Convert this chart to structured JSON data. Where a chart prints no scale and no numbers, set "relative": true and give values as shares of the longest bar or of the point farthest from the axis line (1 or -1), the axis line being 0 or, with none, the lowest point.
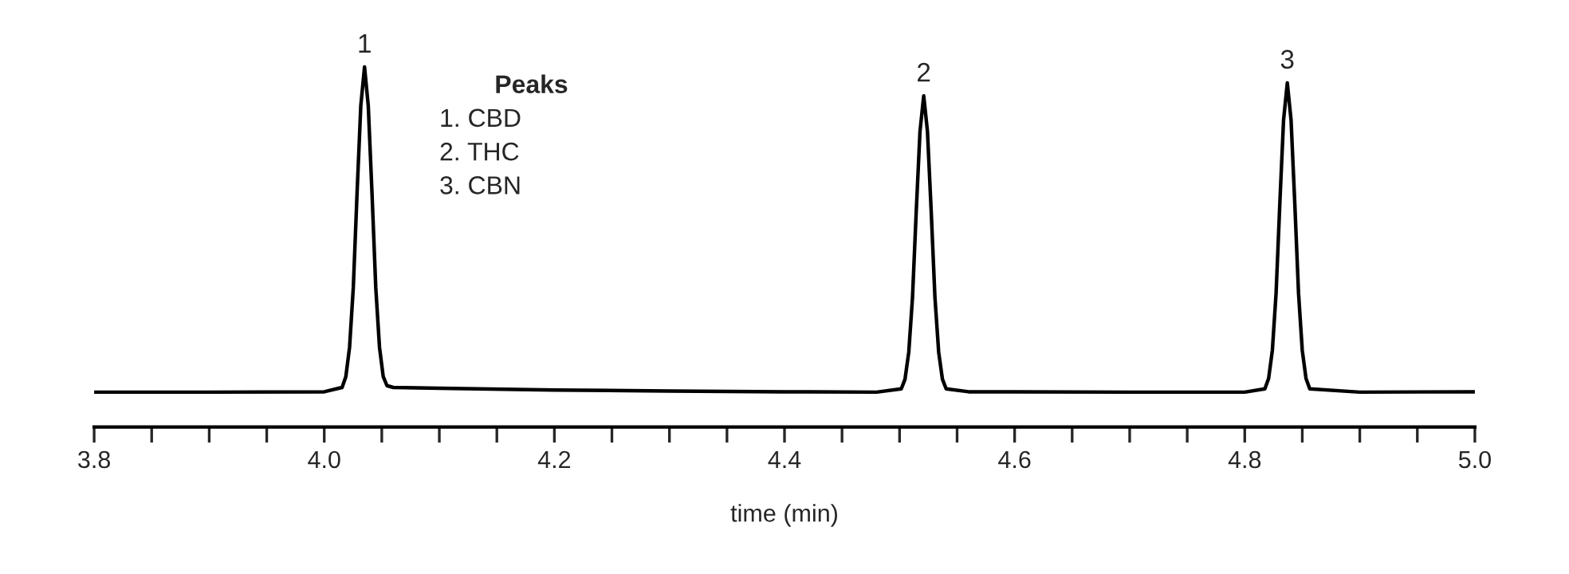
{
  "chart_data": {
    "type": "line",
    "relative": true,
    "xlabel": "time (min)",
    "x": [
      3.8,
      3.9,
      4.0,
      4.0155,
      4.01875,
      4.022,
      4.02525,
      4.0285,
      4.03175,
      4.035,
      4.03825,
      4.0415,
      4.04475,
      4.048,
      4.05125,
      4.0545,
      4.06,
      4.1,
      4.2,
      4.3,
      4.4,
      4.48,
      4.5015,
      4.50475,
      4.508,
      4.51125,
      4.5145,
      4.51775,
      4.521,
      4.52425,
      4.5275,
      4.53075,
      4.534,
      4.53725,
      4.5405,
      4.56,
      4.7,
      4.8,
      4.8175,
      4.82075,
      4.824,
      4.82725,
      4.8305,
      4.83375,
      4.837,
      4.84025,
      4.8435,
      4.84675,
      4.85,
      4.85325,
      4.8565,
      4.9,
      5.0
    ],
    "series": [
      {
        "color": "#000000",
        "values": [
          0.097,
          0.097,
          0.098,
          0.11,
          0.14,
          0.222,
          0.388,
          0.649,
          0.892,
          1.0,
          0.892,
          0.649,
          0.388,
          0.222,
          0.14,
          0.115,
          0.11,
          0.108,
          0.103,
          0.1,
          0.098,
          0.097,
          0.106,
          0.133,
          0.208,
          0.36,
          0.599,
          0.821,
          0.92,
          0.821,
          0.599,
          0.36,
          0.208,
          0.133,
          0.106,
          0.098,
          0.097,
          0.097,
          0.106,
          0.135,
          0.213,
          0.372,
          0.621,
          0.853,
          0.956,
          0.853,
          0.621,
          0.372,
          0.213,
          0.135,
          0.106,
          0.097,
          0.098
        ]
      }
    ],
    "xlim": [
      3.8,
      5.0
    ],
    "xticks": [
      {
        "value": 3.8,
        "label": "3.8"
      },
      {
        "value": 3.85,
        "label": null
      },
      {
        "value": 3.9,
        "label": null
      },
      {
        "value": 3.95,
        "label": null
      },
      {
        "value": 4.0,
        "label": "4.0"
      },
      {
        "value": 4.05,
        "label": null
      },
      {
        "value": 4.1,
        "label": null
      },
      {
        "value": 4.15,
        "label": null
      },
      {
        "value": 4.2,
        "label": "4.2"
      },
      {
        "value": 4.25,
        "label": null
      },
      {
        "value": 4.3,
        "label": null
      },
      {
        "value": 4.35,
        "label": null
      },
      {
        "value": 4.4,
        "label": "4.4"
      },
      {
        "value": 4.45,
        "label": null
      },
      {
        "value": 4.5,
        "label": null
      },
      {
        "value": 4.55,
        "label": null
      },
      {
        "value": 4.6,
        "label": "4.6"
      },
      {
        "value": 4.65,
        "label": null
      },
      {
        "value": 4.7,
        "label": null
      },
      {
        "value": 4.75,
        "label": null
      },
      {
        "value": 4.8,
        "label": "4.8"
      },
      {
        "value": 4.85,
        "label": null
      },
      {
        "value": 4.9,
        "label": null
      },
      {
        "value": 4.95,
        "label": null
      },
      {
        "value": 5.0,
        "label": "5.0"
      }
    ],
    "tick_labels": "x",
    "grid": false,
    "legend": false,
    "marker": "none",
    "line_style": "solid",
    "annotations": [
      {
        "text": "1",
        "x": 4.035,
        "y": 1.0
      },
      {
        "text": "2",
        "x": 4.521,
        "y": 0.92
      },
      {
        "text": "3",
        "x": 4.837,
        "y": 0.956
      },
      "Peaks",
      "1. CBD",
      "2. THC",
      "3. CBN"
    ]
  }
}
